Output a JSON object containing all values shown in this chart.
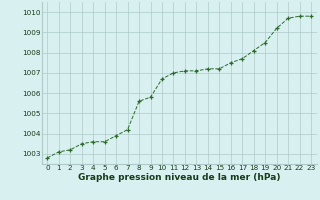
{
  "x": [
    0,
    1,
    2,
    3,
    4,
    5,
    6,
    7,
    8,
    9,
    10,
    11,
    12,
    13,
    14,
    15,
    16,
    17,
    18,
    19,
    20,
    21,
    22,
    23
  ],
  "y": [
    1002.8,
    1003.1,
    1003.2,
    1003.5,
    1003.6,
    1003.6,
    1003.9,
    1004.2,
    1005.6,
    1005.8,
    1006.7,
    1007.0,
    1007.1,
    1007.1,
    1007.2,
    1007.2,
    1007.5,
    1007.7,
    1008.1,
    1008.5,
    1009.2,
    1009.7,
    1009.8,
    1009.8
  ],
  "ylim": [
    1002.5,
    1010.5
  ],
  "yticks": [
    1003,
    1004,
    1005,
    1006,
    1007,
    1008,
    1009,
    1010
  ],
  "xticks": [
    0,
    1,
    2,
    3,
    4,
    5,
    6,
    7,
    8,
    9,
    10,
    11,
    12,
    13,
    14,
    15,
    16,
    17,
    18,
    19,
    20,
    21,
    22,
    23
  ],
  "line_color": "#2d6a2d",
  "marker_color": "#2d6a2d",
  "bg_color": "#d8f0f0",
  "grid_color": "#afc8c8",
  "xlabel": "Graphe pression niveau de la mer (hPa)",
  "xlabel_color": "#1a3a1a",
  "tick_fontsize": 5.2,
  "label_fontsize": 6.5
}
